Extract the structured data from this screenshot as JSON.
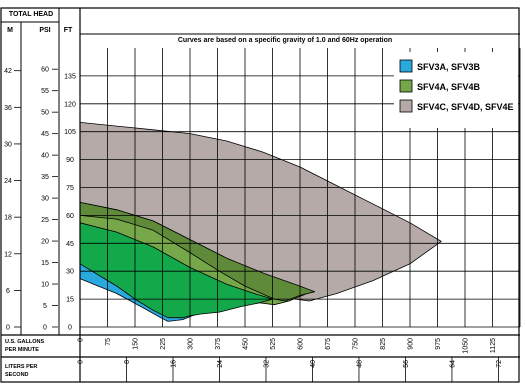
{
  "chart_data": {
    "type": "area",
    "title": "Curves are based on a specific gravity of 1.0 and 60Hz operation",
    "header": {
      "group": "TOTAL HEAD",
      "m": "M",
      "psi": "PSI",
      "ft": "FT"
    },
    "x_label": "U.S. GALLONS PER MINUTE",
    "x2_label": "LITERS PER SECOND",
    "x_ticks": [
      "0",
      "75",
      "150",
      "225",
      "300",
      "375",
      "450",
      "525",
      "600",
      "675",
      "750",
      "825",
      "900",
      "975",
      "1050",
      "1125"
    ],
    "x2_ticks": [
      "0",
      "8",
      "16",
      "24",
      "32",
      "40",
      "48",
      "56",
      "64",
      "72"
    ],
    "ft_ticks": [
      "0",
      "15",
      "30",
      "45",
      "60",
      "75",
      "90",
      "105",
      "120",
      "135"
    ],
    "psi_ticks": [
      "0",
      "5",
      "10",
      "15",
      "20",
      "25",
      "30",
      "35",
      "40",
      "45",
      "50",
      "55",
      "60"
    ],
    "m_ticks": [
      "0",
      "6",
      "12",
      "18",
      "24",
      "30",
      "36",
      "42"
    ],
    "xlim": [
      0,
      1200
    ],
    "ylim": [
      0,
      150
    ],
    "series": [
      {
        "name": "SFV4C, SFV4D, SFV4E",
        "color": "#b5aaa7",
        "polygon": [
          [
            0,
            110
          ],
          [
            100,
            108
          ],
          [
            200,
            106
          ],
          [
            300,
            104
          ],
          [
            400,
            100
          ],
          [
            500,
            94
          ],
          [
            600,
            86
          ],
          [
            700,
            76
          ],
          [
            800,
            66
          ],
          [
            900,
            56
          ],
          [
            985,
            46
          ],
          [
            900,
            34
          ],
          [
            800,
            25
          ],
          [
            700,
            18
          ],
          [
            625,
            14
          ],
          [
            550,
            16
          ],
          [
            450,
            25
          ],
          [
            350,
            38
          ],
          [
            250,
            50
          ],
          [
            150,
            58
          ],
          [
            75,
            62
          ],
          [
            0,
            65
          ]
        ]
      },
      {
        "name": "SFV4A, SFV4B",
        "color": "#76a84a",
        "polygon": [
          [
            0,
            67
          ],
          [
            100,
            63
          ],
          [
            200,
            57
          ],
          [
            300,
            47
          ],
          [
            400,
            37
          ],
          [
            500,
            28
          ],
          [
            560,
            23
          ],
          [
            630,
            19
          ],
          [
            570,
            14
          ],
          [
            530,
            12
          ],
          [
            450,
            14
          ],
          [
            350,
            20
          ],
          [
            275,
            30
          ],
          [
            200,
            40
          ],
          [
            100,
            50
          ],
          [
            0,
            56
          ]
        ]
      },
      {
        "name": "SFV3A, SFV3B",
        "color": "#2aa9de",
        "polygon": [
          [
            0,
            38
          ],
          [
            75,
            33
          ],
          [
            150,
            25
          ],
          [
            225,
            17
          ],
          [
            280,
            13
          ],
          [
            330,
            8
          ],
          [
            280,
            4
          ],
          [
            240,
            3
          ],
          [
            220,
            5
          ],
          [
            175,
            10
          ],
          [
            100,
            18
          ],
          [
            50,
            22
          ],
          [
            0,
            26
          ]
        ]
      },
      {
        "name": "",
        "color": "#13a84a",
        "polygon": [
          [
            0,
            56
          ],
          [
            100,
            51
          ],
          [
            200,
            43
          ],
          [
            300,
            32
          ],
          [
            400,
            23
          ],
          [
            475,
            18
          ],
          [
            525,
            15
          ],
          [
            490,
            13
          ],
          [
            440,
            11
          ],
          [
            380,
            8
          ],
          [
            330,
            7
          ],
          [
            300,
            6
          ],
          [
            280,
            5
          ],
          [
            240,
            5
          ],
          [
            200,
            9
          ],
          [
            150,
            15
          ],
          [
            100,
            22
          ],
          [
            0,
            34
          ]
        ]
      },
      {
        "name": "",
        "color": "#5f8a3a",
        "polygon": [
          [
            0,
            67
          ],
          [
            100,
            63
          ],
          [
            200,
            57
          ],
          [
            300,
            47
          ],
          [
            400,
            37
          ],
          [
            500,
            29
          ],
          [
            600,
            22
          ],
          [
            640,
            19
          ],
          [
            600,
            17
          ],
          [
            560,
            14
          ],
          [
            530,
            15
          ],
          [
            450,
            22
          ],
          [
            380,
            30
          ],
          [
            300,
            40
          ],
          [
            200,
            52
          ],
          [
            100,
            58
          ],
          [
            0,
            60
          ]
        ]
      }
    ],
    "legend_position": "top-right",
    "legend_entries": [
      {
        "label": "SFV3A, SFV3B",
        "color": "#2aa9de"
      },
      {
        "label": "SFV4A, SFV4B",
        "color": "#76a84a"
      },
      {
        "label": "SFV4C, SFV4D, SFV4E",
        "color": "#b5aaa7"
      }
    ],
    "grid": true
  }
}
